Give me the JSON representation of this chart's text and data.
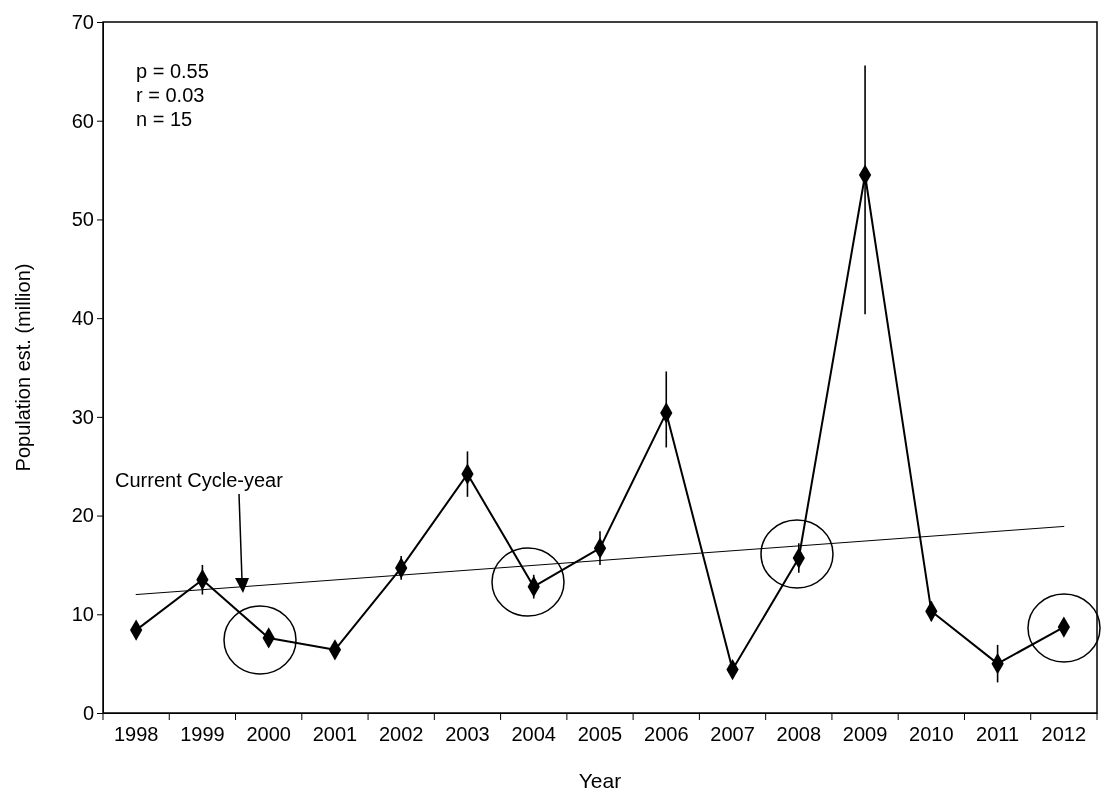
{
  "chart_data": {
    "type": "line",
    "xlabel": "Year",
    "ylabel": "Population est. (million)",
    "categories": [
      "1998",
      "1999",
      "2000",
      "2001",
      "2002",
      "2003",
      "2004",
      "2005",
      "2006",
      "2007",
      "2008",
      "2009",
      "2010",
      "2011",
      "2012"
    ],
    "series": [
      {
        "color": "#000000",
        "marker": "diamond",
        "values": [
          8.4,
          13.5,
          7.6,
          6.4,
          14.7,
          24.2,
          12.8,
          16.7,
          30.4,
          4.4,
          15.7,
          54.5,
          10.3,
          5.0,
          8.7
        ],
        "errors": [
          0.7,
          1.5,
          null,
          null,
          1.2,
          2.3,
          1.2,
          1.7,
          [
            26.9,
            34.6
          ],
          null,
          1.5,
          [
            40.4,
            65.6
          ],
          1.0,
          1.9,
          null
        ]
      },
      {
        "color": "#000000",
        "marker": "none",
        "values": [
          12.0,
          null,
          null,
          null,
          null,
          null,
          null,
          null,
          null,
          null,
          null,
          null,
          null,
          null,
          18.9
        ]
      }
    ],
    "ylim": [
      0,
      70
    ],
    "yticks": [
      0,
      10,
      20,
      30,
      40,
      50,
      60,
      70
    ],
    "grid": false,
    "annotations": [
      "p = 0.55\nr = 0.03\nn = 15",
      "Current Cycle-year"
    ]
  }
}
